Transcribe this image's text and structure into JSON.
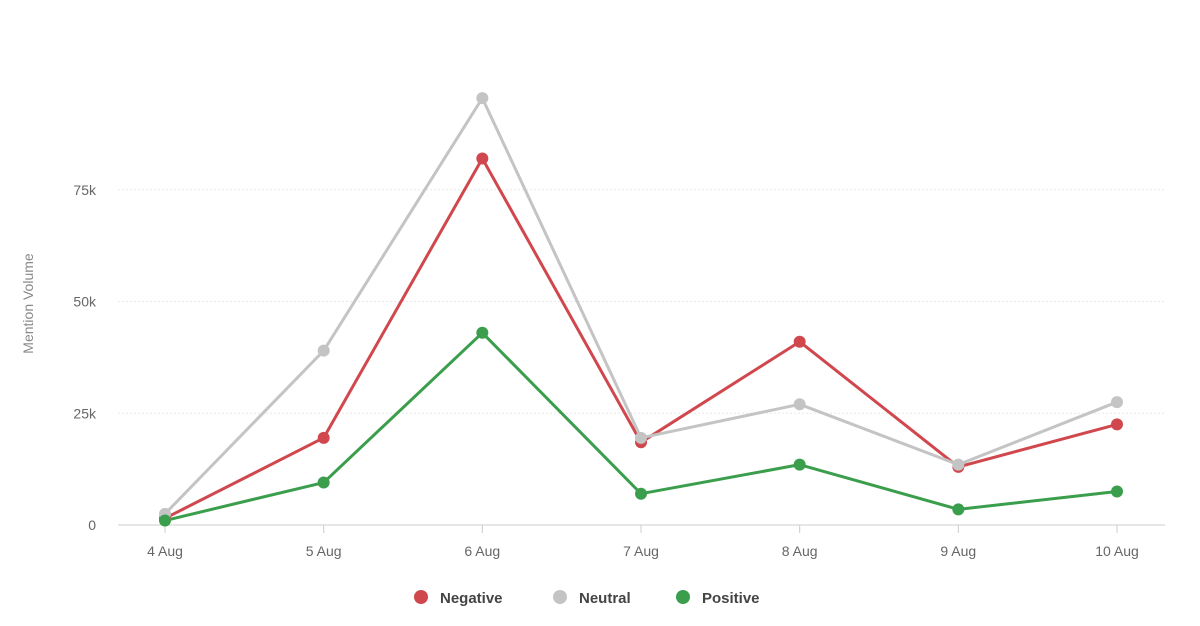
{
  "chart_data": {
    "type": "line",
    "title": "",
    "xlabel": "",
    "ylabel": "Mention Volume",
    "categories": [
      "4 Aug",
      "5 Aug",
      "6 Aug",
      "7 Aug",
      "8 Aug",
      "9 Aug",
      "10 Aug"
    ],
    "ylim": [
      0,
      100000
    ],
    "yticks": [
      0,
      25000,
      50000,
      75000
    ],
    "ytick_labels": [
      "0",
      "25k",
      "50k",
      "75k"
    ],
    "grid": true,
    "legend_position": "bottom-center",
    "series": [
      {
        "name": "Negative",
        "color": "#d0484e",
        "values": [
          1500,
          19500,
          82000,
          18500,
          41000,
          13000,
          22500
        ]
      },
      {
        "name": "Neutral",
        "color": "#c4c4c4",
        "values": [
          2500,
          39000,
          95500,
          19500,
          27000,
          13500,
          27500
        ]
      },
      {
        "name": "Positive",
        "color": "#3a9e4c",
        "values": [
          1000,
          9500,
          43000,
          7000,
          13500,
          3500,
          7500
        ]
      }
    ]
  }
}
